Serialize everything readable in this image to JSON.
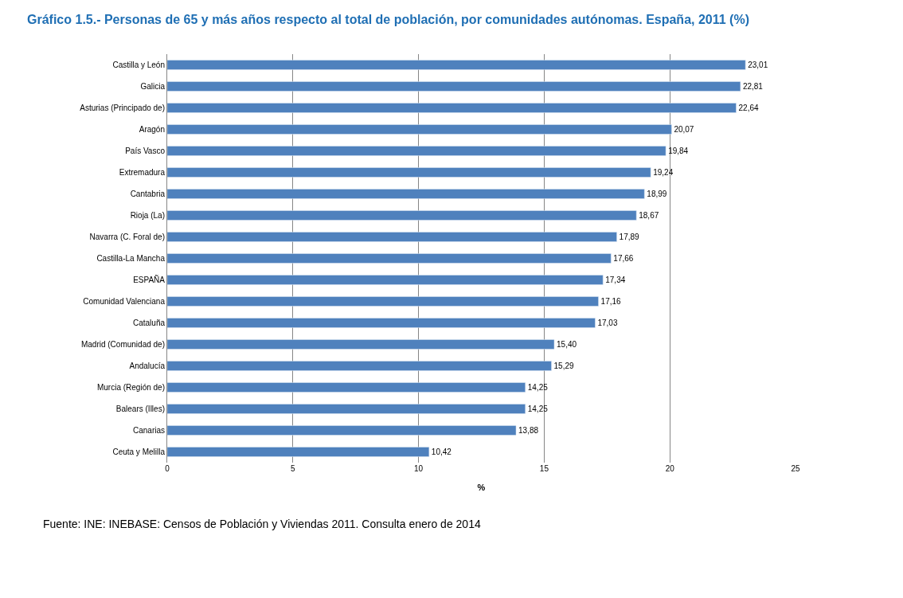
{
  "chart_data": {
    "type": "bar",
    "orientation": "horizontal",
    "title": "Gráfico 1.5.- Personas de 65 y más años respecto al total de población, por comunidades autónomas. España, 2011 (%)",
    "xlabel": "%",
    "categories": [
      "Castilla y León",
      "Galicia",
      "Asturias (Principado de)",
      "Aragón",
      "País Vasco",
      "Extremadura",
      "Cantabria",
      "Rioja (La)",
      "Navarra (C. Foral de)",
      "Castilla-La Mancha",
      "ESPAÑA",
      "Comunidad Valenciana",
      "Cataluña",
      "Madrid (Comunidad de)",
      "Andalucía",
      "Murcia (Región de)",
      "Balears (Illes)",
      "Canarias",
      "Ceuta y Melilla"
    ],
    "values": [
      23.01,
      22.81,
      22.64,
      20.07,
      19.84,
      19.24,
      18.99,
      18.67,
      17.89,
      17.66,
      17.34,
      17.16,
      17.03,
      15.4,
      15.29,
      14.25,
      14.25,
      13.88,
      10.42
    ],
    "value_labels": [
      "23,01",
      "22,81",
      "22,64",
      "20,07",
      "19,84",
      "19,24",
      "18,99",
      "18,67",
      "17,89",
      "17,66",
      "17,34",
      "17,16",
      "17,03",
      "15,40",
      "15,29",
      "14,25",
      "14,25",
      "13,88",
      "10,42"
    ],
    "color": "#4f81bd",
    "xlim": [
      0,
      25
    ],
    "xticks": [
      0,
      5,
      10,
      15,
      20,
      25
    ],
    "grid": "x",
    "annotations": [
      "Fuente: INE: INEBASE: Censos de Población y Viviendas 2011. Consulta enero de 2014"
    ]
  }
}
